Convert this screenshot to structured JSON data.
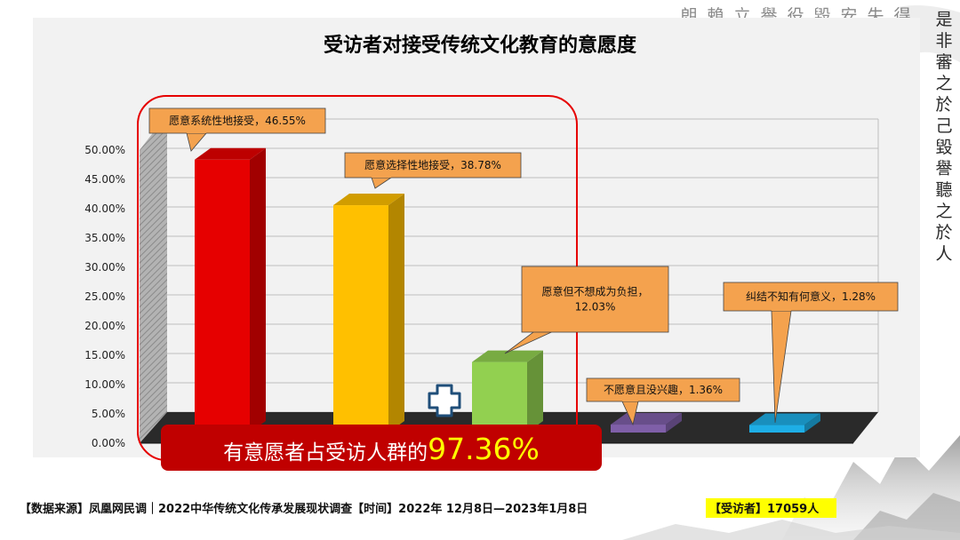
{
  "chart_data": {
    "type": "bar",
    "title": "受访者对接受传统文化教育的意愿度",
    "categories": [
      "愿意系统性地接受",
      "愿意选择性地接受",
      "愿意但不想成为负担",
      "不愿意且没兴趣",
      "纠结不知有何意义"
    ],
    "values": [
      46.55,
      38.78,
      12.03,
      1.36,
      1.28
    ],
    "data_labels": [
      [
        "愿意系统性地接受，46.55%"
      ],
      [
        "愿意选择性地接受，38.78%"
      ],
      [
        "愿意但不想成为负担，",
        "12.03%"
      ],
      [
        "不愿意且没兴趣，1.36%"
      ],
      [
        "纠结不知有何意义，1.28%"
      ]
    ],
    "colors": [
      "#e60000",
      "#ffc000",
      "#92d050",
      "#7f5fa8",
      "#1eaee6"
    ],
    "y_ticks": [
      "0.00%",
      "5.00%",
      "10.00%",
      "15.00%",
      "20.00%",
      "25.00%",
      "30.00%",
      "35.00%",
      "40.00%",
      "45.00%",
      "50.00%"
    ],
    "ylim": [
      0,
      50
    ],
    "grid": true,
    "style": "3d-column"
  },
  "highlight": {
    "prefix": "有意愿者占受访人群的",
    "value": "97.36%",
    "plus_symbol": "+"
  },
  "footer": {
    "source": "【数据来源】凤凰网民调｜2022中华传统文化传承发展现状调查【时间】2022年 12月8日—2023年1月8日",
    "respondents": "【受访者】17059人"
  },
  "decoration": {
    "calligraphy_col1": "是非審之於己毀譽聽之於人",
    "calligraphy_top": "得失安毀役譽立賴朗"
  },
  "colors": {
    "callout_fill": "#f4a24e",
    "highlight_box": "#c00000",
    "highlight_value": "#ffff00",
    "rounded_frame": "#e60000",
    "respondents_bg": "#ffff00"
  }
}
